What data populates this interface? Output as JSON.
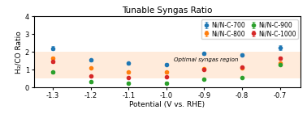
{
  "chart_data": {
    "type": "scatter",
    "title": "Tunable Syngas Ratio",
    "x_label": "Potential (V vs. RHE)",
    "y_label": "H₂/CO Ratio",
    "x": [
      -1.3,
      -1.2,
      -1.1,
      -1.0,
      -0.9,
      -0.8,
      -0.7
    ],
    "series": [
      {
        "name": "Ni/N-C-700",
        "marker": "o",
        "values": [
          2.2,
          1.55,
          1.35,
          1.3,
          1.9,
          1.85,
          2.25
        ],
        "errors": [
          0.12,
          0.07,
          0.07,
          0.07,
          0.07,
          0.07,
          0.13
        ]
      },
      {
        "name": "Ni/N-C-800",
        "marker": "o",
        "values": [
          1.65,
          1.1,
          0.85,
          0.85,
          1.05,
          1.1,
          1.35
        ],
        "errors": [
          0.07,
          0.05,
          0.05,
          0.05,
          0.05,
          0.05,
          0.07
        ]
      },
      {
        "name": "Ni/N-C-900",
        "marker": "o",
        "values": [
          0.85,
          0.3,
          0.25,
          0.25,
          0.45,
          0.55,
          1.3
        ],
        "errors": [
          0.06,
          0.05,
          0.05,
          0.05,
          0.05,
          0.06,
          0.07
        ]
      },
      {
        "name": "Ni/N-C-1000",
        "marker": "o",
        "values": [
          1.45,
          0.65,
          0.55,
          0.6,
          1.0,
          1.15,
          1.65
        ],
        "errors": [
          0.07,
          0.05,
          0.05,
          0.05,
          0.05,
          0.06,
          0.08
        ]
      }
    ],
    "shaded_region": {
      "ymin": 0.5,
      "ymax": 2.0
    },
    "annotations": [
      {
        "text": "Optimal syngas region",
        "x": -0.98,
        "y": 1.55
      }
    ],
    "xlim": [
      -1.35,
      -0.645
    ],
    "ylim": [
      0,
      4
    ],
    "xticks": [
      -1.3,
      -1.2,
      -1.1,
      -1.0,
      -0.9,
      -0.8,
      -0.7
    ],
    "yticks": [
      0,
      1,
      2,
      3,
      4
    ],
    "legend": "upper right"
  }
}
